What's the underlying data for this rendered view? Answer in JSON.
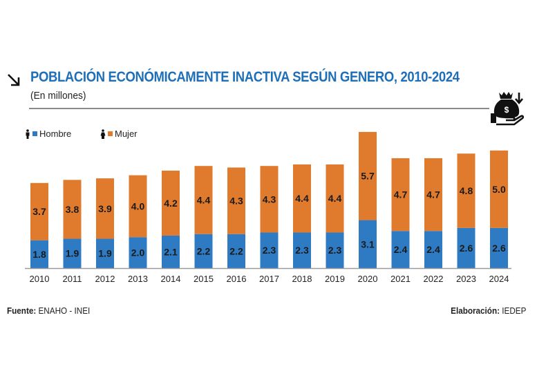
{
  "header": {
    "title": "POBLACIÓN ECONÓMICAMENTE INACTIVA SEGÚN GENERO, 2010-2024",
    "subtitle": "(En millones)",
    "icons": [
      "arrow-down-right-icon",
      "money-bag-hand-icon"
    ]
  },
  "legend": {
    "items": [
      {
        "label": "Hombre",
        "color": "#2e7bc4",
        "icon": "man-icon"
      },
      {
        "label": "Mujer",
        "color": "#e07a2c",
        "icon": "woman-icon"
      }
    ]
  },
  "footer": {
    "source_label": "Fuente:",
    "source_value": " ENAHO - INEI",
    "credit_label": "Elaboración:",
    "credit_value": " IEDEP"
  },
  "chart_data": {
    "type": "bar",
    "stacked": true,
    "title": "POBLACIÓN ECONÓMICAMENTE INACTIVA SEGÚN GENERO, 2010-2024",
    "subtitle": "(En millones)",
    "xlabel": "",
    "ylabel": "",
    "categories": [
      "2010",
      "2011",
      "2012",
      "2013",
      "2014",
      "2015",
      "2016",
      "2017",
      "2018",
      "2019",
      "2020",
      "2021",
      "2022",
      "2023",
      "2024"
    ],
    "series": [
      {
        "name": "Hombre",
        "color": "#2e7bc4",
        "values": [
          1.8,
          1.9,
          1.9,
          2.0,
          2.1,
          2.2,
          2.2,
          2.3,
          2.3,
          2.3,
          3.1,
          2.4,
          2.4,
          2.6,
          2.6
        ]
      },
      {
        "name": "Mujer",
        "color": "#e07a2c",
        "values": [
          3.7,
          3.8,
          3.9,
          4.0,
          4.2,
          4.4,
          4.3,
          4.3,
          4.4,
          4.4,
          5.7,
          4.7,
          4.7,
          4.8,
          5.0
        ]
      }
    ],
    "ylim": [
      0,
      9
    ],
    "grid": false,
    "data_labels": true,
    "legend_position": "top-left"
  }
}
